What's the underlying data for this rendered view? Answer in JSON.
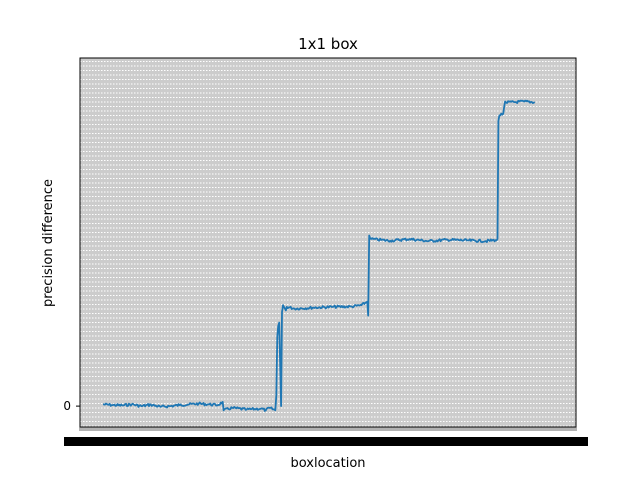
{
  "chart_data": {
    "type": "line",
    "title": "1x1 box",
    "xlabel": "boxlocation",
    "ylabel": "precision difference",
    "xlim": [
      0,
      470
    ],
    "ylim": [
      -0.06,
      1.0
    ],
    "yticks": [
      {
        "value": 0,
        "label": "0"
      }
    ],
    "xtick_note": "dense overlapping tick labels",
    "grid": true,
    "line_color": "#1f77b4",
    "grid_color": "#ffffff",
    "background_color": "#cccccc",
    "series": [
      {
        "x": [
          0,
          10,
          20,
          30,
          40,
          50,
          60,
          70,
          80,
          90,
          100,
          110,
          120,
          125,
          126,
          135,
          150,
          165,
          170,
          174,
          180,
          181,
          182,
          183,
          184,
          186,
          187,
          188,
          190,
          191,
          192,
          200,
          220,
          240,
          260,
          270,
          276,
          277,
          278,
          280,
          300,
          320,
          340,
          360,
          380,
          400,
          410,
          411,
          412,
          413,
          414,
          418,
          419,
          420,
          421,
          440,
          451
        ],
        "y": [
          0.005,
          0.003,
          0.002,
          0.005,
          0.0,
          0.004,
          -0.002,
          0.0,
          0.003,
          0.005,
          0.007,
          0.005,
          0.003,
          0.012,
          -0.012,
          -0.005,
          -0.01,
          -0.007,
          -0.012,
          -0.005,
          -0.012,
          0.03,
          0.2,
          0.23,
          0.24,
          0.0,
          0.27,
          0.29,
          0.28,
          0.275,
          0.285,
          0.28,
          0.283,
          0.285,
          0.286,
          0.29,
          0.3,
          0.26,
          0.49,
          0.48,
          0.475,
          0.48,
          0.474,
          0.478,
          0.476,
          0.474,
          0.477,
          0.476,
          0.48,
          0.82,
          0.835,
          0.84,
          0.86,
          0.875,
          0.872,
          0.875,
          0.873
        ]
      }
    ]
  }
}
